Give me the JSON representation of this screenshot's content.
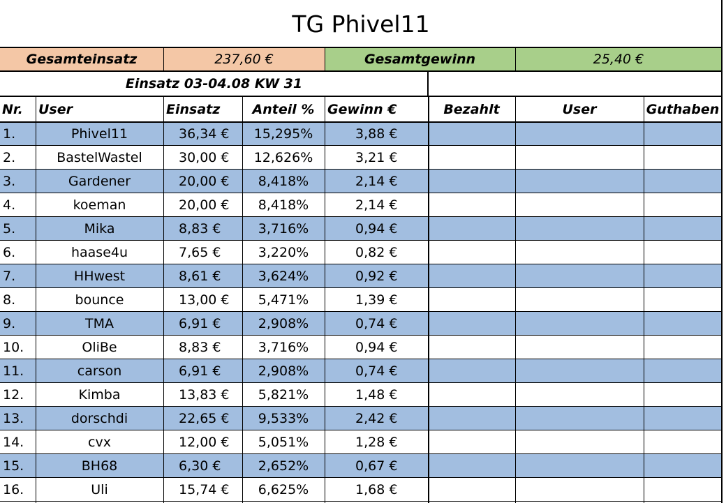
{
  "title": "TG Phivel11",
  "summary": {
    "gesamteinsatz_label": "Gesamteinsatz",
    "gesamteinsatz_value": "237,60 €",
    "gesamtgewinn_label": "Gesamtgewinn",
    "gesamtgewinn_value": "25,40 €"
  },
  "period_label": "Einsatz 03-04.08 KW 31",
  "columns": {
    "nr": "Nr.",
    "user": "User",
    "einsatz": "Einsatz",
    "anteil": "Anteil %",
    "gewinn": "Gewinn €",
    "bezahlt": "Bezahlt",
    "user2": "User",
    "guthaben": "Guthaben"
  },
  "rows": [
    {
      "nr": "1.",
      "user": "Phivel11",
      "einsatz": "36,34 €",
      "anteil": "15,295%",
      "gewinn": "3,88 €"
    },
    {
      "nr": "2.",
      "user": "BastelWastel",
      "einsatz": "30,00 €",
      "anteil": "12,626%",
      "gewinn": "3,21 €"
    },
    {
      "nr": "3.",
      "user": "Gardener",
      "einsatz": "20,00 €",
      "anteil": "8,418%",
      "gewinn": "2,14 €"
    },
    {
      "nr": "4.",
      "user": "koeman",
      "einsatz": "20,00 €",
      "anteil": "8,418%",
      "gewinn": "2,14 €"
    },
    {
      "nr": "5.",
      "user": "Mika",
      "einsatz": "8,83 €",
      "anteil": "3,716%",
      "gewinn": "0,94 €"
    },
    {
      "nr": "6.",
      "user": "haase4u",
      "einsatz": "7,65 €",
      "anteil": "3,220%",
      "gewinn": "0,82 €"
    },
    {
      "nr": "7.",
      "user": "HHwest",
      "einsatz": "8,61 €",
      "anteil": "3,624%",
      "gewinn": "0,92 €"
    },
    {
      "nr": "8.",
      "user": "bounce",
      "einsatz": "13,00 €",
      "anteil": "5,471%",
      "gewinn": "1,39 €"
    },
    {
      "nr": "9.",
      "user": "TMA",
      "einsatz": "6,91 €",
      "anteil": "2,908%",
      "gewinn": "0,74 €"
    },
    {
      "nr": "10.",
      "user": "OliBe",
      "einsatz": "8,83 €",
      "anteil": "3,716%",
      "gewinn": "0,94 €"
    },
    {
      "nr": "11.",
      "user": "carson",
      "einsatz": "6,91 €",
      "anteil": "2,908%",
      "gewinn": "0,74 €"
    },
    {
      "nr": "12.",
      "user": "Kimba",
      "einsatz": "13,83 €",
      "anteil": "5,821%",
      "gewinn": "1,48 €"
    },
    {
      "nr": "13.",
      "user": "dorschdi",
      "einsatz": "22,65 €",
      "anteil": "9,533%",
      "gewinn": "2,42 €"
    },
    {
      "nr": "14.",
      "user": "cvx",
      "einsatz": "12,00 €",
      "anteil": "5,051%",
      "gewinn": "1,28 €"
    },
    {
      "nr": "15.",
      "user": "BH68",
      "einsatz": "6,30 €",
      "anteil": "2,652%",
      "gewinn": "0,67 €"
    },
    {
      "nr": "16.",
      "user": "Uli",
      "einsatz": "15,74 €",
      "anteil": "6,625%",
      "gewinn": "1,68 €"
    }
  ],
  "colors": {
    "peach": "#f4c7a6",
    "green": "#a8cf8a",
    "row_blue": "#a2bee0",
    "grid": "#000000"
  }
}
